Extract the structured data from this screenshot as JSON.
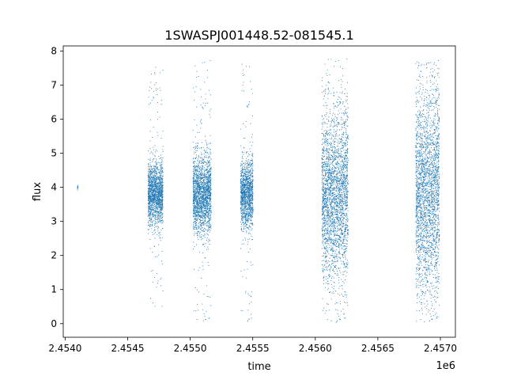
{
  "chart_data": {
    "type": "scatter",
    "title": "1SWASPJ001448.52-081545.1",
    "xlabel": "time",
    "ylabel": "flux",
    "x_offset_label": "1e6",
    "xlim": [
      2453985,
      2457120
    ],
    "ylim": [
      -0.4,
      8.15
    ],
    "x_ticks": [
      2454000,
      2454500,
      2455000,
      2455500,
      2456000,
      2456500,
      2457000
    ],
    "x_tick_labels": [
      "2.4540",
      "2.4545",
      "2.4550",
      "2.4555",
      "2.4560",
      "2.4565",
      "2.4570"
    ],
    "y_ticks": [
      0,
      1,
      2,
      3,
      4,
      5,
      6,
      7,
      8
    ],
    "y_tick_labels": [
      "0",
      "1",
      "2",
      "3",
      "4",
      "5",
      "6",
      "7",
      "8"
    ],
    "grid": false,
    "marker_color": "#1f77b4",
    "seasons": [
      {
        "x_range": [
          2454095,
          2454100
        ],
        "y_center": 4.0,
        "y_spread": 0.05,
        "y_range": [
          3.9,
          4.1
        ]
      },
      {
        "x_range": [
          2454660,
          2454780
        ],
        "y_center": 3.8,
        "y_spread": 0.45,
        "y_range": [
          0.5,
          7.55
        ]
      },
      {
        "x_range": [
          2455020,
          2455165
        ],
        "y_center": 3.8,
        "y_spread": 0.55,
        "y_range": [
          0.0,
          7.75
        ]
      },
      {
        "x_range": [
          2455400,
          2455500
        ],
        "y_center": 3.8,
        "y_spread": 0.5,
        "y_range": [
          0.0,
          7.8
        ]
      },
      {
        "x_range": [
          2456050,
          2456260
        ],
        "y_center": 3.8,
        "y_spread": 1.2,
        "y_range": [
          0.0,
          7.8
        ]
      },
      {
        "x_range": [
          2456800,
          2456990
        ],
        "y_center": 3.9,
        "y_spread": 1.5,
        "y_range": [
          0.0,
          7.75
        ]
      }
    ]
  }
}
